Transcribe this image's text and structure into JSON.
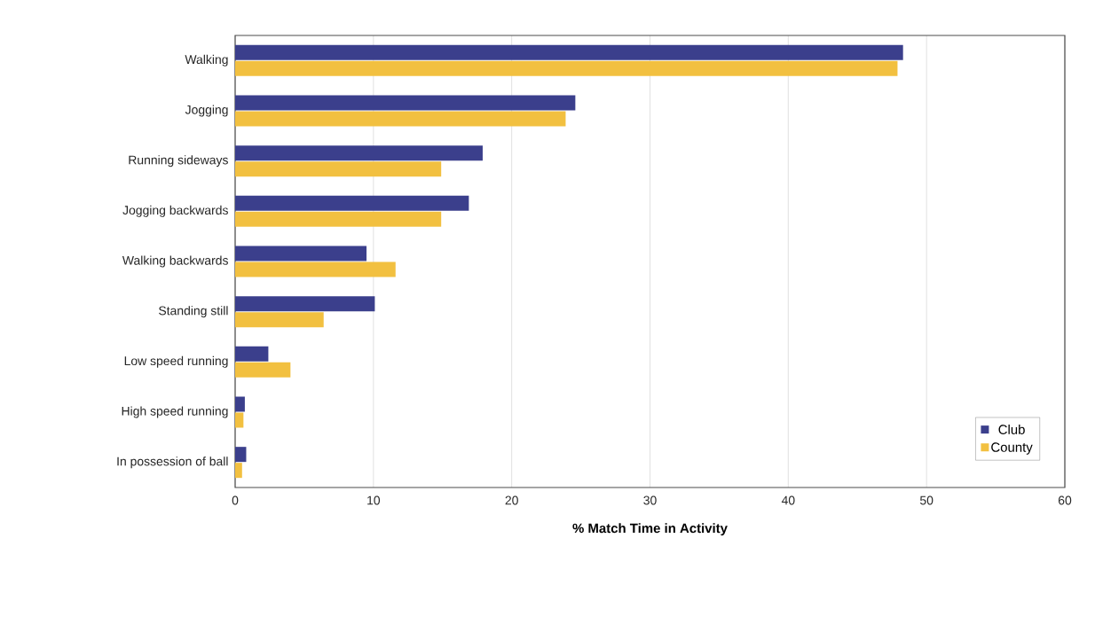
{
  "chart_data": {
    "type": "bar",
    "orientation": "horizontal",
    "xlabel": "% Match Time in Activity",
    "categories": [
      "Walking",
      "Jogging",
      "Running sideways",
      "Jogging backwards",
      "Walking backwards",
      "Standing still",
      "Low speed running",
      "High speed running",
      "In possession of ball"
    ],
    "series": [
      {
        "name": "Club",
        "color": "#3b3f8c",
        "values": [
          48.3,
          24.6,
          17.9,
          16.9,
          9.5,
          10.1,
          2.4,
          0.7,
          0.8
        ]
      },
      {
        "name": "County",
        "color": "#f2c040",
        "values": [
          47.9,
          23.9,
          14.9,
          14.9,
          11.6,
          6.4,
          4.0,
          0.6,
          0.5
        ]
      }
    ],
    "xlim": [
      0,
      60
    ],
    "xticks": [
      0,
      10,
      20,
      30,
      40,
      50,
      60
    ],
    "grid": "x",
    "legend": "bottom right"
  }
}
